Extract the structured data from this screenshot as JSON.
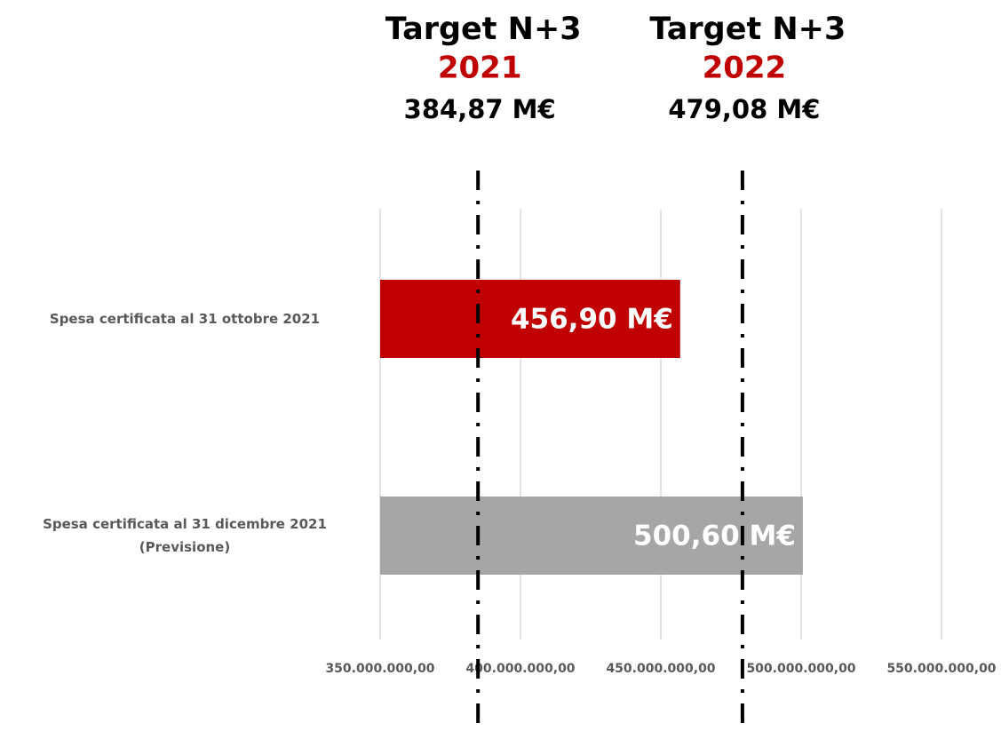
{
  "chart_data": {
    "type": "bar",
    "orientation": "horizontal",
    "categories": [
      "Spesa certificata al 31 ottobre 2021",
      "Spesa certificata al 31 dicembre 2021\n(Previsione)"
    ],
    "values": [
      456900000,
      500600000
    ],
    "value_labels": [
      "456,90 M€",
      "500,60 M€"
    ],
    "colors": [
      "#c00000",
      "#a6a6a6"
    ],
    "xlim": [
      350000000,
      550000000
    ],
    "xticks": [
      {
        "value": 350000000,
        "label": "350.000.000,00"
      },
      {
        "value": 400000000,
        "label": "400.000.000,00"
      },
      {
        "value": 450000000,
        "label": "450.000.000,00"
      },
      {
        "value": 500000000,
        "label": "500.000.000,00"
      },
      {
        "value": 550000000,
        "label": "550.000.000,00"
      }
    ],
    "grid": true,
    "targets": [
      {
        "label": "Target N+3",
        "year": "2021",
        "value": 384870000,
        "value_label": "384,87 M€"
      },
      {
        "label": "Target N+3",
        "year": "2022",
        "value": 479080000,
        "value_label": "479,08 M€"
      }
    ]
  }
}
